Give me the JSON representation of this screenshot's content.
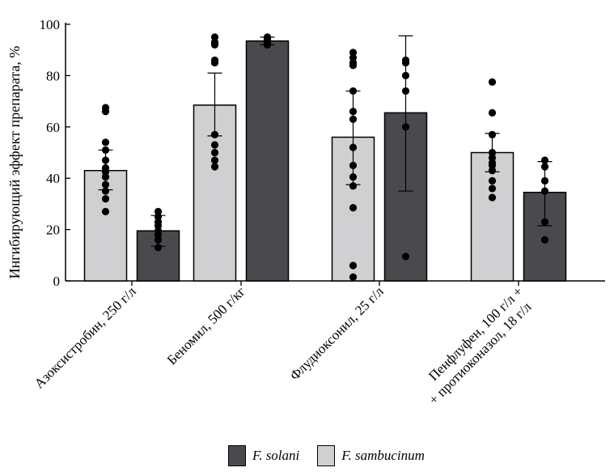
{
  "chart_data": {
    "type": "bar",
    "title": "",
    "xlabel": "",
    "ylabel": "Ингибирующий эффект препарата, %",
    "ylim": [
      0,
      100
    ],
    "yticks": [
      0,
      20,
      40,
      60,
      80,
      100
    ],
    "grid": false,
    "legend_position": "bottom",
    "categories": [
      "Азоксистробин, 250 г/л",
      "Беномил, 500 г/кг",
      "Флудиоксонил, 25 г/л",
      [
        "Пенфлуфен, 100 г/л +",
        "+ протиоконазол, 18 г/л"
      ]
    ],
    "series": [
      {
        "name": "F. sambucinum",
        "color": "#d0d0d2",
        "values": [
          43,
          68.5,
          56,
          50
        ],
        "error_low": [
          35.5,
          56.5,
          37.5,
          42.5
        ],
        "error_high": [
          51,
          81,
          74,
          57.5
        ],
        "points": [
          [
            67.5,
            66,
            54,
            51,
            47,
            44,
            42.5,
            40.5,
            37.5,
            35,
            32,
            27
          ],
          [
            95,
            93,
            92,
            86,
            85,
            57,
            53,
            50,
            47,
            44.5
          ],
          [
            89,
            87,
            85,
            84,
            74,
            66,
            63,
            52,
            45,
            40.5,
            37,
            28.5,
            6,
            1.5
          ],
          [
            77.5,
            65.5,
            57,
            50,
            48,
            46,
            45,
            43,
            39,
            36,
            32.5
          ]
        ]
      },
      {
        "name": "F. solani",
        "color": "#4a4a4e",
        "values": [
          19.5,
          93.5,
          65.5,
          34.5
        ],
        "error_low": [
          13.5,
          92,
          35,
          21.5
        ],
        "error_high": [
          25.5,
          95,
          95.5,
          46.5
        ],
        "points": [
          [
            27,
            25,
            23,
            21.5,
            19.5,
            18,
            16,
            13
          ],
          [
            95,
            94.5,
            94,
            93.5,
            93,
            92.5,
            92,
            92
          ],
          [
            86,
            85,
            80,
            74,
            60,
            9.5
          ],
          [
            47,
            44.5,
            39,
            35,
            23,
            16
          ]
        ]
      }
    ]
  },
  "legend": {
    "items": [
      {
        "label": "F. solani",
        "color": "#4a4a4e"
      },
      {
        "label": "F. sambucinum",
        "color": "#d0d0d2"
      }
    ]
  }
}
